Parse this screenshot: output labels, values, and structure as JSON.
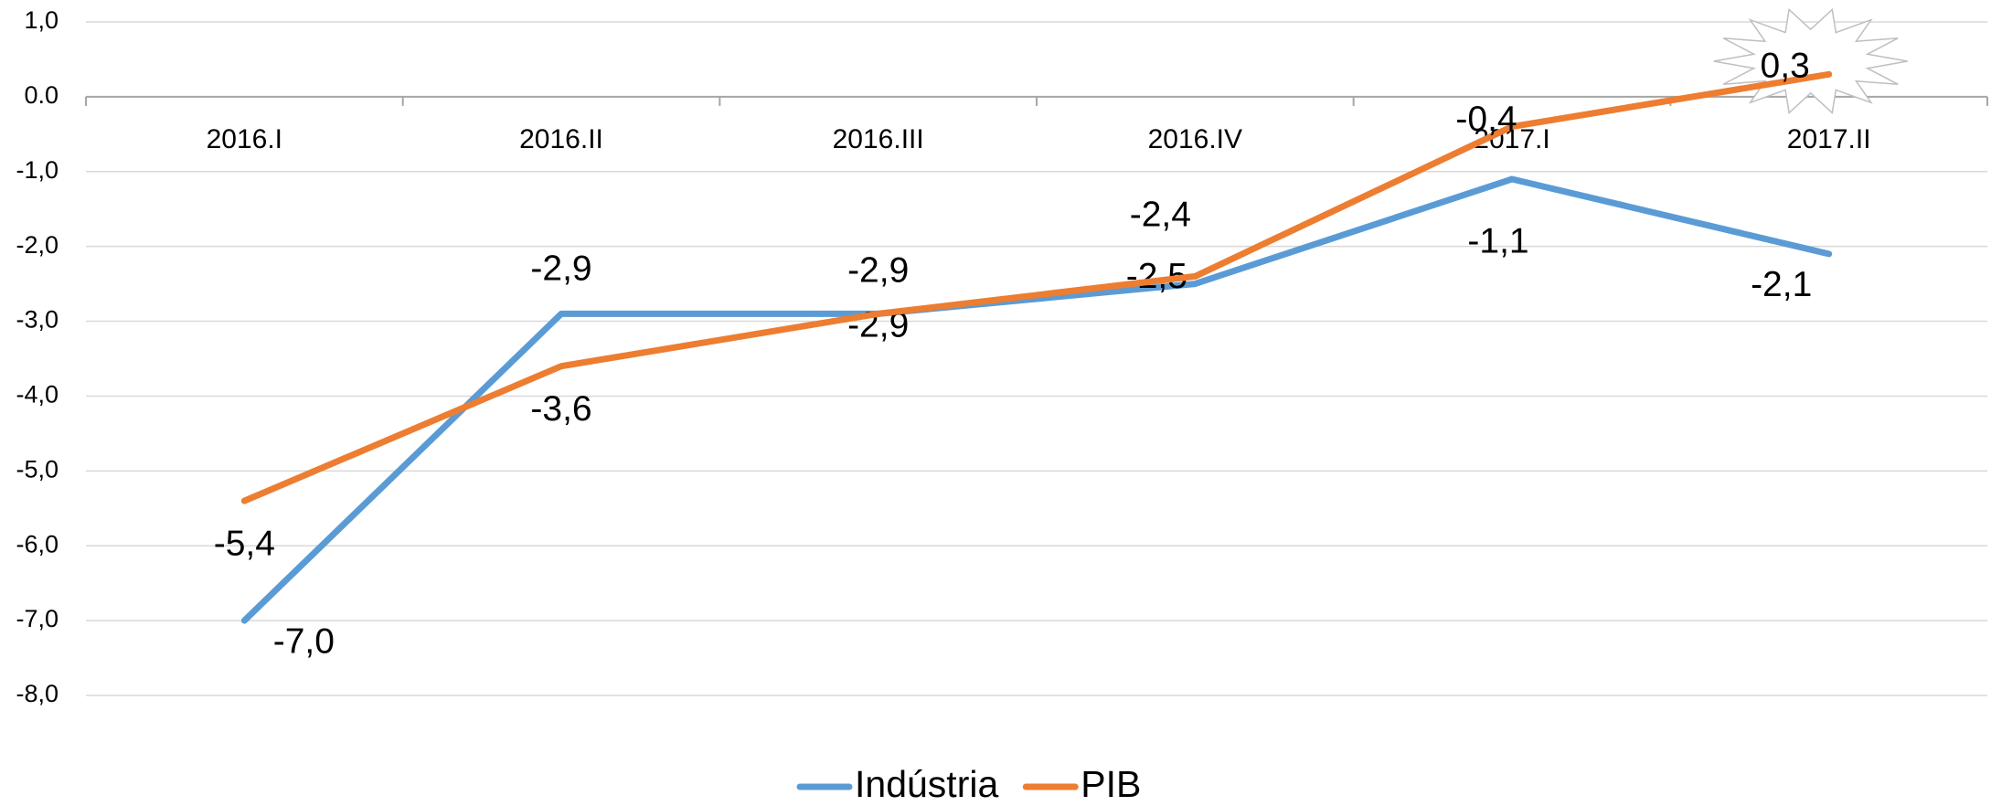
{
  "chart_data": {
    "type": "line",
    "categories": [
      "2016.I",
      "2016.II",
      "2016.III",
      "2016.IV",
      "2017.I",
      "2017.II"
    ],
    "series": [
      {
        "name": "Indústria",
        "color": "#5b9bd5",
        "values": [
          -7.0,
          -2.9,
          -2.9,
          -2.5,
          -1.1,
          -2.1
        ],
        "value_labels": [
          "-7,0",
          "-2,9",
          "-2,9",
          "-2,5",
          "-1,1",
          "-2,1"
        ]
      },
      {
        "name": "PIB",
        "color": "#ed7d31",
        "values": [
          -5.4,
          -3.6,
          -2.9,
          -2.4,
          -0.4,
          0.3
        ],
        "value_labels": [
          "-5,4",
          "-3,6",
          "-2,9",
          "-2,4",
          "-0,4",
          "0,3"
        ]
      }
    ],
    "ylim": [
      -8.0,
      1.0
    ],
    "yticks": [
      {
        "value": -8.0,
        "label": "-8,0"
      },
      {
        "value": -7.0,
        "label": "-7,0"
      },
      {
        "value": -6.0,
        "label": "-6,0"
      },
      {
        "value": -5.0,
        "label": "-5,0"
      },
      {
        "value": -4.0,
        "label": "-4,0"
      },
      {
        "value": -3.0,
        "label": "-3,0"
      },
      {
        "value": -2.0,
        "label": "-2,0"
      },
      {
        "value": -1.0,
        "label": "-1,0"
      },
      {
        "value": 0.0,
        "label": "0.0"
      },
      {
        "value": 1.0,
        "label": "1,0"
      }
    ],
    "grid": true,
    "legend": "bottom"
  }
}
